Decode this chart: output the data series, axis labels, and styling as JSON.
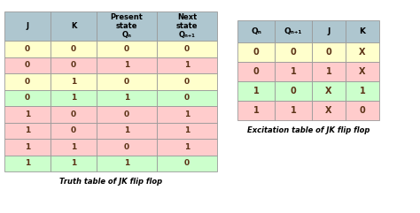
{
  "truth_table": {
    "headers": [
      "J",
      "K",
      "Present\nstate\nQₙ",
      "Next\nstate\nQₙ₊₁"
    ],
    "rows": [
      [
        "0",
        "0",
        "0",
        "0"
      ],
      [
        "0",
        "0",
        "1",
        "1"
      ],
      [
        "0",
        "1",
        "0",
        "0"
      ],
      [
        "0",
        "1",
        "1",
        "0"
      ],
      [
        "1",
        "0",
        "0",
        "1"
      ],
      [
        "1",
        "0",
        "1",
        "1"
      ],
      [
        "1",
        "1",
        "0",
        "1"
      ],
      [
        "1",
        "1",
        "1",
        "0"
      ]
    ],
    "row_colors": [
      "#ffffcc",
      "#ffcccc",
      "#ffffcc",
      "#ccffcc",
      "#ffcccc",
      "#ffcccc",
      "#ffcccc",
      "#ccffcc"
    ],
    "header_color": "#aec6cf",
    "caption": "Truth table of JK flip flop"
  },
  "excitation_table": {
    "headers": [
      "Qₙ",
      "Qₙ₊₁",
      "J",
      "K"
    ],
    "rows": [
      [
        "0",
        "0",
        "0",
        "X"
      ],
      [
        "0",
        "1",
        "1",
        "X"
      ],
      [
        "1",
        "0",
        "X",
        "1"
      ],
      [
        "1",
        "1",
        "X",
        "0"
      ]
    ],
    "row_colors": [
      "#ffffcc",
      "#ffcccc",
      "#ccffcc",
      "#ffcccc"
    ],
    "header_color": "#aec6cf",
    "caption": "Excitation table of JK flip flop"
  },
  "background_color": "#ffffff",
  "text_color": "#5c3317",
  "border_color": "#999999",
  "fig_width": 4.74,
  "fig_height": 2.41,
  "dpi": 100
}
